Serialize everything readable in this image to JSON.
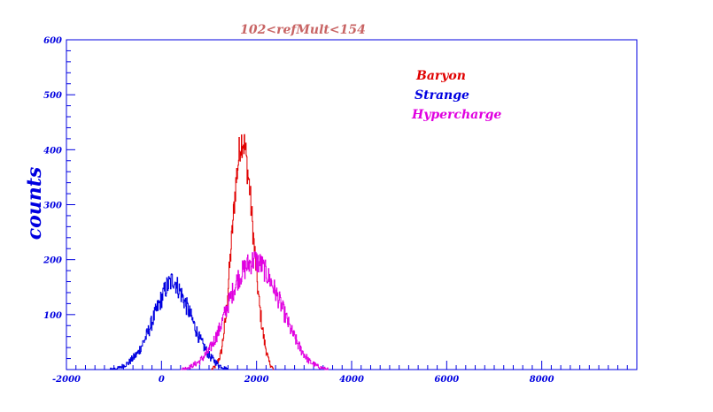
{
  "chart_data": {
    "type": "line",
    "title": "102<refMult<154",
    "xlabel": "",
    "ylabel": "counts",
    "xlim": [
      -2000,
      10000
    ],
    "ylim": [
      0,
      600
    ],
    "x_ticks": [
      "-2000",
      "0",
      "2000",
      "4000",
      "6000",
      "8000"
    ],
    "y_ticks": [
      "100",
      "200",
      "300",
      "400",
      "500",
      "600"
    ],
    "legend_position": "top-right",
    "grid": false,
    "series": [
      {
        "name": "Baryon",
        "color": "#e00000",
        "x": [
          1050,
          1150,
          1250,
          1350,
          1450,
          1550,
          1650,
          1700,
          1750,
          1850,
          1950,
          2050,
          2150,
          2250,
          2350
        ],
        "y": [
          0,
          8,
          30,
          95,
          210,
          330,
          410,
          420,
          405,
          330,
          220,
          120,
          55,
          15,
          0
        ]
      },
      {
        "name": "Strange",
        "color": "#0000e0",
        "x": [
          -1100,
          -900,
          -700,
          -500,
          -300,
          -100,
          100,
          250,
          400,
          600,
          800,
          1000,
          1200,
          1400
        ],
        "y": [
          0,
          3,
          12,
          30,
          65,
          110,
          150,
          165,
          140,
          100,
          55,
          25,
          8,
          0
        ]
      },
      {
        "name": "Hypercharge",
        "color": "#e000e0",
        "x": [
          400,
          600,
          800,
          1000,
          1200,
          1400,
          1600,
          1800,
          1950,
          2100,
          2300,
          2500,
          2700,
          2900,
          3100,
          3300,
          3500
        ],
        "y": [
          0,
          5,
          15,
          35,
          70,
          120,
          165,
          190,
          200,
          190,
          160,
          120,
          75,
          40,
          15,
          5,
          0
        ]
      }
    ]
  }
}
